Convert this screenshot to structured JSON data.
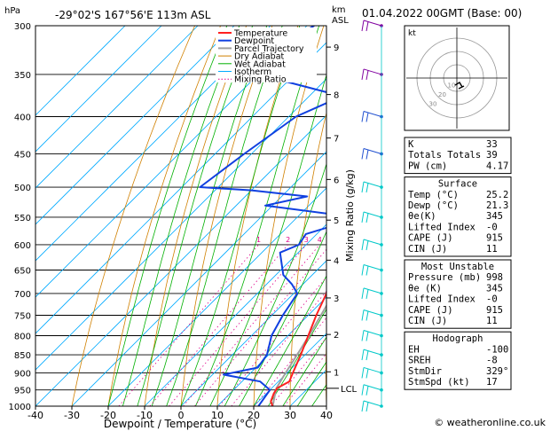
{
  "header": {
    "pressure_unit": "hPa",
    "location": "-29°02'S  167°56'E  113m  ASL",
    "height_unit": "km",
    "height_unit_asl": "ASL",
    "datetime": "01.04.2022  00GMT  (Base: 00)"
  },
  "chart_data": {
    "type": "skewt",
    "xlabel": "Dewpoint / Temperature (°C)",
    "mixing_ratio_label": "Mixing Ratio (g/kg)",
    "x_ticks": [
      -40,
      -30,
      -20,
      -10,
      0,
      10,
      20,
      30,
      40
    ],
    "pressure_ticks": [
      300,
      350,
      400,
      450,
      500,
      550,
      600,
      650,
      700,
      750,
      800,
      850,
      900,
      950,
      1000
    ],
    "km_ticks": [
      {
        "label": "1",
        "p": 897
      },
      {
        "label": "2",
        "p": 797
      },
      {
        "label": "3",
        "p": 710
      },
      {
        "label": "4",
        "p": 630
      },
      {
        "label": "5",
        "p": 555
      },
      {
        "label": "6",
        "p": 488
      },
      {
        "label": "7",
        "p": 428
      },
      {
        "label": "8",
        "p": 373
      },
      {
        "label": "9",
        "p": 321
      }
    ],
    "lcl": {
      "label": "LCL",
      "p": 945
    },
    "mixing_ratio_values": [
      "1",
      "2",
      "3",
      "4",
      "5",
      "8",
      "10",
      "15",
      "20",
      "25"
    ],
    "legend": [
      "Temperature",
      "Dewpoint",
      "Parcel Trajectory",
      "Dry Adiabat",
      "Wet Adiabat",
      "Isotherm",
      "Mixing Ratio"
    ],
    "colors": {
      "temperature": "#ff2020",
      "dewpoint": "#1040e0",
      "parcel": "#a0a0a0",
      "dry_adiabat": "#d08000",
      "wet_adiabat": "#00b000",
      "isotherm": "#00aaff",
      "mixing_ratio": "#e0008a",
      "wind": "#00c8c8"
    },
    "temperature": [
      {
        "p": 1000,
        "t": 25.2
      },
      {
        "p": 985,
        "t": 23.4
      },
      {
        "p": 960,
        "t": 22.0
      },
      {
        "p": 945,
        "t": 21.5
      },
      {
        "p": 925,
        "t": 23.0
      },
      {
        "p": 900,
        "t": 21.6
      },
      {
        "p": 850,
        "t": 18.8
      },
      {
        "p": 800,
        "t": 15.6
      },
      {
        "p": 750,
        "t": 12.2
      },
      {
        "p": 700,
        "t": 9.0
      },
      {
        "p": 650,
        "t": 5.2
      },
      {
        "p": 600,
        "t": 0.8
      },
      {
        "p": 550,
        "t": -3.8
      },
      {
        "p": 500,
        "t": -9.0
      },
      {
        "p": 450,
        "t": -14.6
      },
      {
        "p": 400,
        "t": -21.2
      },
      {
        "p": 350,
        "t": -29.0
      },
      {
        "p": 300,
        "t": -38.0
      }
    ],
    "dewpoint": [
      {
        "p": 1000,
        "t": 21.3
      },
      {
        "p": 950,
        "t": 20.0
      },
      {
        "p": 925,
        "t": 15.0
      },
      {
        "p": 905,
        "t": 3.0
      },
      {
        "p": 885,
        "t": 10.5
      },
      {
        "p": 850,
        "t": 9.5
      },
      {
        "p": 800,
        "t": 5.5
      },
      {
        "p": 750,
        "t": 3.0
      },
      {
        "p": 700,
        "t": 1.0
      },
      {
        "p": 680,
        "t": -3.0
      },
      {
        "p": 660,
        "t": -8.0
      },
      {
        "p": 615,
        "t": -15.0
      },
      {
        "p": 600,
        "t": -12.0
      },
      {
        "p": 580,
        "t": -13.0
      },
      {
        "p": 560,
        "t": -6.0
      },
      {
        "p": 545,
        "t": -11.0
      },
      {
        "p": 530,
        "t": -32.0
      },
      {
        "p": 515,
        "t": -23.0
      },
      {
        "p": 505,
        "t": -40.0
      },
      {
        "p": 500,
        "t": -55.0
      },
      {
        "p": 450,
        "t": -52.0
      },
      {
        "p": 400,
        "t": -48.0
      },
      {
        "p": 375,
        "t": -41.0
      },
      {
        "p": 350,
        "t": -70.0
      },
      {
        "p": 330,
        "t": -74.0
      },
      {
        "p": 300,
        "t": -68.0
      }
    ],
    "parcel": [
      {
        "p": 1000,
        "t": 25.2
      },
      {
        "p": 945,
        "t": 21.3
      },
      {
        "p": 900,
        "t": 19.6
      },
      {
        "p": 850,
        "t": 17.8
      },
      {
        "p": 800,
        "t": 15.8
      },
      {
        "p": 700,
        "t": 11.0
      },
      {
        "p": 600,
        "t": 5.2
      },
      {
        "p": 500,
        "t": -2.5
      },
      {
        "p": 400,
        "t": -12.8
      },
      {
        "p": 350,
        "t": -20.0
      },
      {
        "p": 300,
        "t": -29.0
      }
    ],
    "wind_levels": [
      1000,
      950,
      900,
      850,
      800,
      750,
      700,
      650,
      600,
      550,
      500,
      450,
      400,
      350,
      300
    ]
  },
  "hodograph": {
    "unit_label": "kt",
    "ring_labels": [
      "10",
      "20",
      "30"
    ]
  },
  "indices": [
    {
      "label": "K",
      "value": "33"
    },
    {
      "label": "Totals Totals",
      "value": "39"
    },
    {
      "label": "PW (cm)",
      "value": "4.17"
    }
  ],
  "surface": {
    "title": "Surface",
    "rows": [
      {
        "label": "Temp (°C)",
        "value": "25.2"
      },
      {
        "label": "Dewp (°C)",
        "value": "21.3"
      },
      {
        "label": "θe(K)",
        "value": "345"
      },
      {
        "label": "Lifted Index",
        "value": "-0"
      },
      {
        "label": "CAPE (J)",
        "value": "915"
      },
      {
        "label": "CIN (J)",
        "value": "11"
      }
    ]
  },
  "most_unstable": {
    "title": "Most Unstable",
    "rows": [
      {
        "label": "Pressure (mb)",
        "value": "998"
      },
      {
        "label": "θe (K)",
        "value": "345"
      },
      {
        "label": "Lifted Index",
        "value": "-0"
      },
      {
        "label": "CAPE (J)",
        "value": "915"
      },
      {
        "label": "CIN (J)",
        "value": "11"
      }
    ]
  },
  "hodograph_table": {
    "title": "Hodograph",
    "rows": [
      {
        "label": "EH",
        "value": "-100"
      },
      {
        "label": "SREH",
        "value": "-8"
      },
      {
        "label": "StmDir",
        "value": "329°"
      },
      {
        "label": "StmSpd (kt)",
        "value": "17"
      }
    ]
  },
  "copyright": "© weatheronline.co.uk"
}
